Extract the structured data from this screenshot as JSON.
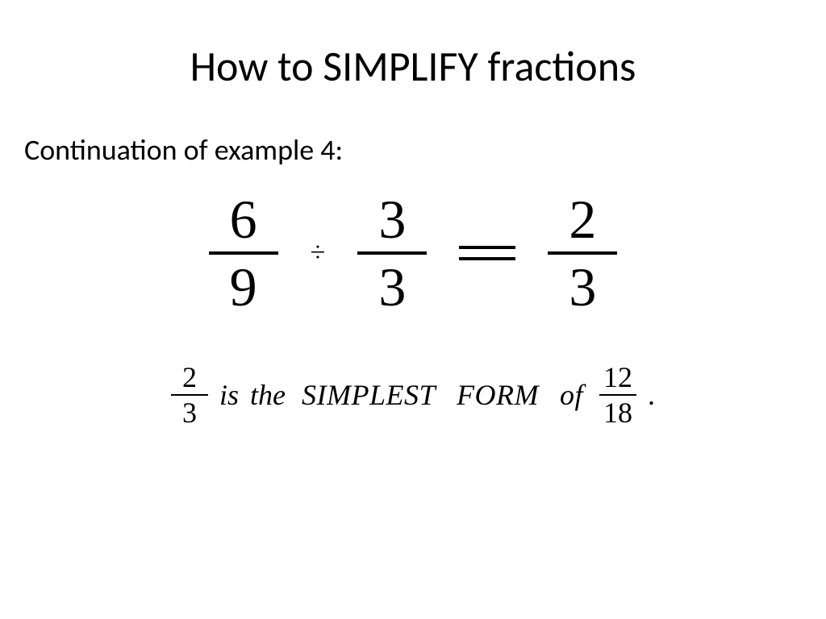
{
  "slide": {
    "title": "How to SIMPLIFY fractions",
    "subtitle": "Continuation of example 4:",
    "equation": {
      "frac1": {
        "num": "6",
        "den": "9"
      },
      "operator": "÷",
      "frac2": {
        "num": "3",
        "den": "3"
      },
      "frac3": {
        "num": "2",
        "den": "3"
      }
    },
    "statement": {
      "resultFrac": {
        "num": "2",
        "den": "3"
      },
      "text1": "is",
      "text2": "the",
      "text3": "SIMPLEST",
      "text4": "FORM",
      "text5": "of",
      "sourceFrac": {
        "num": "12",
        "den": "18"
      },
      "period": "."
    },
    "style": {
      "background": "#ffffff",
      "text_color": "#000000",
      "title_fontsize": 52,
      "subtitle_fontsize": 36,
      "equation_fontsize": 68,
      "statement_fontsize": 36,
      "equation_font": "Times New Roman",
      "body_font": "Calibri"
    }
  }
}
